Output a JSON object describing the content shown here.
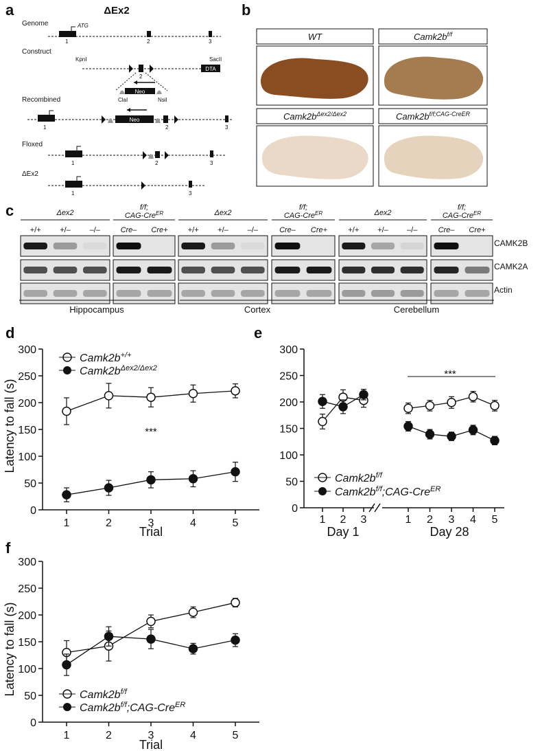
{
  "panel_labels": {
    "a": "a",
    "b": "b",
    "c": "c",
    "d": "d",
    "e": "e",
    "f": "f"
  },
  "panel_a": {
    "title": "ΔEx2",
    "rows": [
      "Genome",
      "Construct",
      "Recombined",
      "Floxed",
      "ΔEx2"
    ],
    "atg": "ATG",
    "kpnI": "KpnI",
    "sacII": "SacII",
    "dta": "DTA",
    "neo": "Neo",
    "claI": "ClaI",
    "nsiI": "NsiI",
    "exon_nums": [
      "1",
      "2",
      "3"
    ]
  },
  "panel_b": {
    "labels": [
      "WT",
      "Camk2b",
      "Camk2b",
      "Camk2b"
    ],
    "sup": [
      "",
      "f/f",
      "Δex2/Δex2",
      "f/f;CAG-CreER"
    ]
  },
  "panel_c": {
    "group_ex2": "Δex2",
    "group_ff_1": "f/f;",
    "group_ff_2": "CAG-Cre",
    "group_ff_sup": "ER",
    "lanes_ex2": [
      "+/+",
      "+/–",
      "–/–"
    ],
    "lanes_ff": [
      "Cre–",
      "Cre+"
    ],
    "blots": [
      "CAMK2B",
      "CAMK2A",
      "Actin"
    ],
    "regions": [
      "Hippocampus",
      "Cortex",
      "Cerebellum"
    ]
  },
  "chart_data": [
    {
      "type": "line",
      "panel": "d",
      "xlabel": "Trial",
      "ylabel": "Latency to fall (s)",
      "x": [
        1,
        2,
        3,
        4,
        5
      ],
      "ylim": [
        0,
        300
      ],
      "yticks": [
        0,
        50,
        100,
        150,
        200,
        250,
        300
      ],
      "annotation": "***",
      "series": [
        {
          "name": "Camk2b+/+",
          "marker": "open",
          "values": [
            184,
            213,
            210,
            217,
            222
          ],
          "err": [
            25,
            23,
            18,
            16,
            13
          ]
        },
        {
          "name": "Camk2bΔex2/Δex2",
          "marker": "filled",
          "values": [
            28,
            41,
            56,
            58,
            71
          ],
          "err": [
            13,
            14,
            15,
            15,
            18
          ]
        }
      ],
      "legend": [
        {
          "base": "Camk2b",
          "sup": "+/+"
        },
        {
          "base": "Camk2b",
          "sup": "Δex2/Δex2"
        }
      ]
    },
    {
      "type": "line",
      "panel": "e",
      "ylabel": "",
      "ylim": [
        0,
        300
      ],
      "yticks": [
        0,
        50,
        100,
        150,
        200,
        250,
        300
      ],
      "groups": [
        {
          "label": "Day 1",
          "x": [
            1,
            2,
            3
          ]
        },
        {
          "label": "Day 28",
          "x": [
            1,
            2,
            3,
            4,
            5
          ]
        }
      ],
      "annotation": "***",
      "series": [
        {
          "name": "Camk2bf/f",
          "marker": "open",
          "day1": [
            163,
            209,
            203
          ],
          "day1_err": [
            14,
            14,
            13
          ],
          "day28": [
            188,
            193,
            199,
            210,
            193
          ],
          "day28_err": [
            10,
            10,
            11,
            10,
            10
          ]
        },
        {
          "name": "Camk2bf/f;CAG-CreER",
          "marker": "filled",
          "day1": [
            201,
            191,
            214
          ],
          "day1_err": [
            13,
            13,
            10
          ],
          "day28": [
            154,
            139,
            135,
            147,
            127
          ],
          "day28_err": [
            9,
            9,
            8,
            9,
            8
          ]
        }
      ],
      "legend": [
        {
          "base": "Camk2b",
          "sup": "f/f"
        },
        {
          "base": "Camk2b",
          "sup": "f/f",
          "suffix": ";CAG-Cre",
          "sup2": "ER"
        }
      ]
    },
    {
      "type": "line",
      "panel": "f",
      "xlabel": "Trial",
      "ylabel": "Latency to fall (s)",
      "x": [
        1,
        2,
        3,
        4,
        5
      ],
      "ylim": [
        0,
        300
      ],
      "yticks": [
        0,
        50,
        100,
        150,
        200,
        250,
        300
      ],
      "series": [
        {
          "name": "Camk2bf/f",
          "marker": "open",
          "values": [
            130,
            142,
            188,
            205,
            223
          ],
          "err": [
            22,
            28,
            12,
            10,
            8
          ]
        },
        {
          "name": "Camk2bf/f;CAG-CreER",
          "marker": "filled",
          "values": [
            107,
            160,
            155,
            137,
            153
          ],
          "err": [
            20,
            18,
            18,
            10,
            12
          ]
        }
      ],
      "legend": [
        {
          "base": "Camk2b",
          "sup": "f/f"
        },
        {
          "base": "Camk2b",
          "sup": "f/f",
          "suffix": ";CAG-Cre",
          "sup2": "ER"
        }
      ]
    }
  ]
}
